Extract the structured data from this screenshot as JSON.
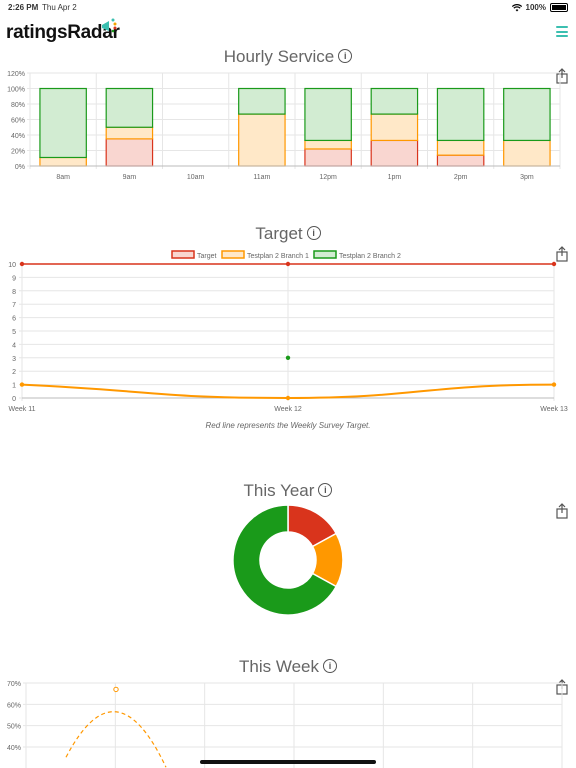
{
  "status_bar": {
    "time": "2:26 PM",
    "date": "Thu Apr 2",
    "battery": "100%"
  },
  "header": {
    "logo_text": "ratingsRadar",
    "menu_icon": "hamburger-icon"
  },
  "colors": {
    "red": "#d9341c",
    "orange": "#ff9800",
    "green": "#1a9a1a",
    "teal": "#3bbfb0"
  },
  "hourly": {
    "title": "Hourly Service",
    "chart_data": {
      "type": "bar",
      "stacked": true,
      "categories": [
        "8am",
        "9am",
        "10am",
        "11am",
        "12pm",
        "1pm",
        "2pm",
        "3pm"
      ],
      "y_ticks": [
        "0%",
        "20%",
        "40%",
        "60%",
        "80%",
        "100%",
        "120%"
      ],
      "ylim": [
        0,
        120
      ],
      "series": [
        {
          "values": [
            0,
            35,
            0,
            0,
            22,
            33,
            14,
            0
          ]
        },
        {
          "values": [
            11,
            15,
            0,
            67,
            11,
            34,
            19,
            33
          ]
        },
        {
          "values": [
            89,
            50,
            0,
            33,
            67,
            33,
            67,
            67
          ]
        }
      ]
    }
  },
  "target": {
    "title": "Target",
    "caption": "Red line represents the Weekly Survey Target.",
    "chart_data": {
      "type": "line",
      "categories": [
        "Week 11",
        "Week 12",
        "Week 13"
      ],
      "y_ticks": [
        "0",
        "1",
        "2",
        "3",
        "4",
        "5",
        "6",
        "7",
        "8",
        "9",
        "10"
      ],
      "ylim": [
        0,
        10
      ],
      "series": [
        {
          "name": "Target",
          "values": [
            10,
            10,
            10
          ]
        },
        {
          "name": "Testplan 2 Branch 1",
          "values": [
            1,
            0,
            1
          ]
        },
        {
          "name": "Testplan 2 Branch 2",
          "values": [
            null,
            3,
            null
          ]
        }
      ],
      "legend": "top"
    }
  },
  "year": {
    "title": "This Year",
    "chart_data": {
      "type": "pie",
      "donut": true,
      "values": [
        17,
        16,
        67
      ]
    }
  },
  "week": {
    "title": "This Week",
    "chart_data": {
      "type": "line",
      "y_ticks": [
        "40%",
        "50%",
        "60%",
        "70%"
      ],
      "ylim": [
        40,
        70
      ],
      "series": [
        {
          "values": [
            38,
            67,
            38
          ]
        }
      ]
    }
  }
}
